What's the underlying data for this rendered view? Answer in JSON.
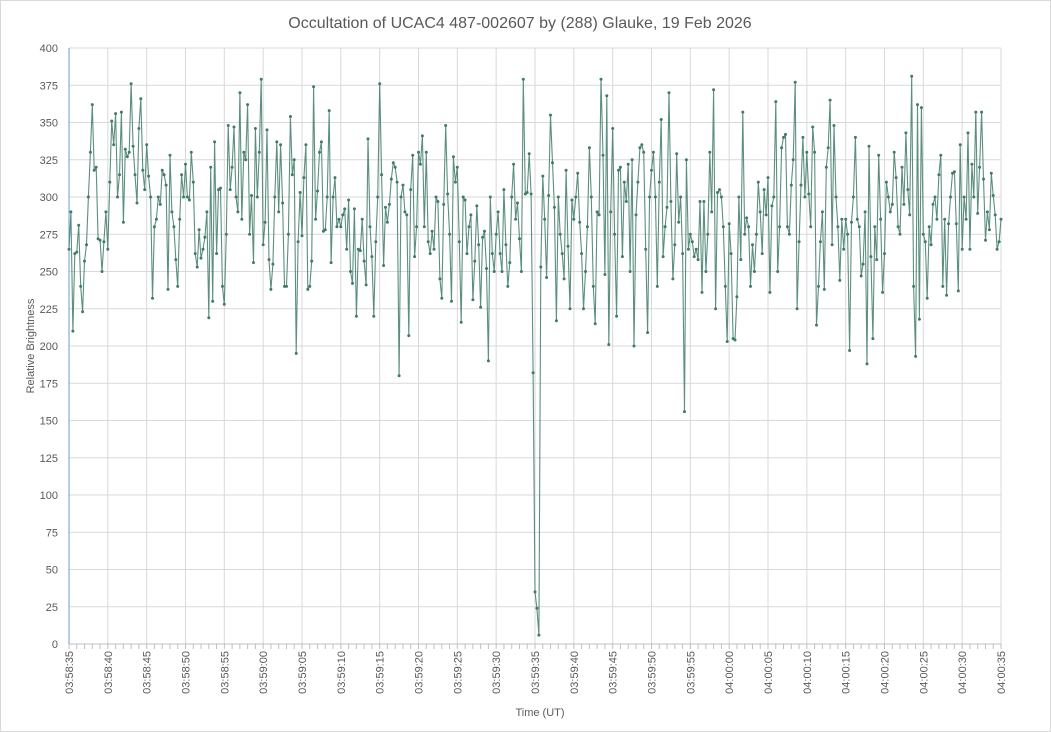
{
  "chart_data": {
    "type": "line",
    "title": "Occultation of UCAC4 487-002607 by (288) Glauke, 19 Feb 2026",
    "xlabel": "Time (UT)",
    "ylabel": "Relative Brightness",
    "ylim": [
      0,
      400
    ],
    "yticks": [
      0,
      25,
      50,
      75,
      100,
      125,
      150,
      175,
      200,
      225,
      250,
      275,
      300,
      325,
      350,
      375,
      400
    ],
    "x_start": "03:58:35",
    "x_end": "04:00:35",
    "x_range_seconds": [
      0,
      120
    ],
    "x_step_seconds": 0.25,
    "xticks": [
      "03:58:35",
      "03:58:40",
      "03:58:45",
      "03:58:50",
      "03:58:55",
      "03:59:00",
      "03:59:05",
      "03:59:10",
      "03:59:15",
      "03:59:20",
      "03:59:25",
      "03:59:30",
      "03:59:35",
      "03:59:40",
      "03:59:45",
      "03:59:50",
      "03:59:55",
      "04:00:00",
      "04:00:05",
      "04:00:10",
      "04:00:15",
      "04:00:20",
      "04:00:25",
      "04:00:30",
      "04:00:35"
    ],
    "grid": true,
    "legend": "none",
    "series": [
      {
        "name": "Relative Brightness",
        "color": "#3f7b67",
        "values": [
          265,
          290,
          210,
          262,
          263,
          281,
          240,
          223,
          257,
          268,
          300,
          330,
          362,
          318,
          320,
          272,
          271,
          250,
          270,
          290,
          265,
          310,
          351,
          335,
          356,
          300,
          315,
          357,
          283,
          332,
          327,
          330,
          376,
          334,
          315,
          296,
          346,
          366,
          318,
          305,
          335,
          314,
          300,
          232,
          280,
          285,
          300,
          295,
          318,
          315,
          308,
          238,
          328,
          290,
          280,
          258,
          240,
          285,
          315,
          300,
          322,
          300,
          298,
          330,
          310,
          262,
          253,
          278,
          259,
          265,
          273,
          290,
          219,
          320,
          230,
          337,
          262,
          305,
          306,
          240,
          228,
          275,
          348,
          305,
          320,
          347,
          300,
          290,
          370,
          285,
          330,
          325,
          362,
          275,
          301,
          256,
          346,
          300,
          330,
          379,
          268,
          283,
          345,
          258,
          238,
          255,
          300,
          337,
          290,
          335,
          296,
          240,
          240,
          275,
          354,
          315,
          325,
          195,
          270,
          303,
          274,
          313,
          335,
          238,
          240,
          257,
          374,
          285,
          304,
          330,
          337,
          277,
          278,
          300,
          358,
          256,
          300,
          313,
          280,
          285,
          280,
          288,
          292,
          265,
          298,
          250,
          242,
          292,
          220,
          265,
          264,
          285,
          257,
          241,
          339,
          280,
          260,
          220,
          270,
          300,
          376,
          315,
          254,
          293,
          283,
          295,
          312,
          323,
          320,
          310,
          180,
          300,
          308,
          290,
          288,
          207,
          305,
          328,
          260,
          280,
          330,
          322,
          341,
          280,
          330,
          270,
          262,
          277,
          265,
          300,
          297,
          245,
          232,
          295,
          348,
          302,
          275,
          230,
          327,
          310,
          320,
          270,
          216,
          300,
          298,
          262,
          280,
          288,
          231,
          257,
          294,
          268,
          226,
          273,
          277,
          252,
          190,
          300,
          262,
          250,
          275,
          290,
          262,
          250,
          305,
          268,
          240,
          256,
          300,
          322,
          285,
          296,
          272,
          250,
          379,
          302,
          303,
          329,
          302,
          182,
          35,
          24,
          6,
          253,
          314,
          285,
          246,
          301,
          355,
          323,
          293,
          217,
          300,
          275,
          262,
          245,
          318,
          267,
          225,
          298,
          285,
          300,
          316,
          283,
          262,
          225,
          250,
          280,
          333,
          300,
          240,
          215,
          290,
          288,
          379,
          328,
          248,
          368,
          201,
          290,
          346,
          275,
          220,
          318,
          320,
          260,
          310,
          297,
          322,
          250,
          325,
          200,
          288,
          310,
          333,
          335,
          330,
          265,
          209,
          300,
          318,
          330,
          300,
          240,
          310,
          352,
          260,
          280,
          293,
          370,
          297,
          245,
          268,
          329,
          283,
          300,
          262,
          156,
          325,
          265,
          275,
          270,
          260,
          265,
          258,
          297,
          236,
          297,
          250,
          275,
          330,
          290,
          372,
          225,
          303,
          305,
          300,
          280,
          240,
          203,
          282,
          262,
          205,
          204,
          233,
          300,
          258,
          357,
          275,
          286,
          280,
          240,
          268,
          250,
          275,
          310,
          290,
          262,
          305,
          288,
          313,
          236,
          294,
          300,
          364,
          250,
          280,
          333,
          340,
          342,
          280,
          275,
          308,
          325,
          377,
          225,
          270,
          308,
          340,
          300,
          330,
          302,
          280,
          347,
          330,
          214,
          240,
          270,
          290,
          238,
          320,
          333,
          365,
          268,
          348,
          300,
          280,
          244,
          285,
          265,
          285,
          275,
          197,
          283,
          300,
          340,
          285,
          280,
          247,
          255,
          290,
          188,
          334,
          260,
          205,
          280,
          258,
          328,
          285,
          236,
          262,
          310,
          300,
          290,
          295,
          330,
          313,
          280,
          275,
          320,
          295,
          343,
          305,
          288,
          381,
          240,
          193,
          362,
          218,
          360,
          275,
          270,
          232,
          280,
          268,
          295,
          300,
          285,
          315,
          328,
          240,
          285,
          234,
          282,
          300,
          316,
          317,
          282,
          237,
          335,
          265,
          300,
          285,
          343,
          265,
          322,
          300,
          357,
          289,
          320,
          357,
          312,
          271,
          290,
          278,
          316,
          301,
          288,
          265,
          270,
          285
        ]
      }
    ]
  }
}
